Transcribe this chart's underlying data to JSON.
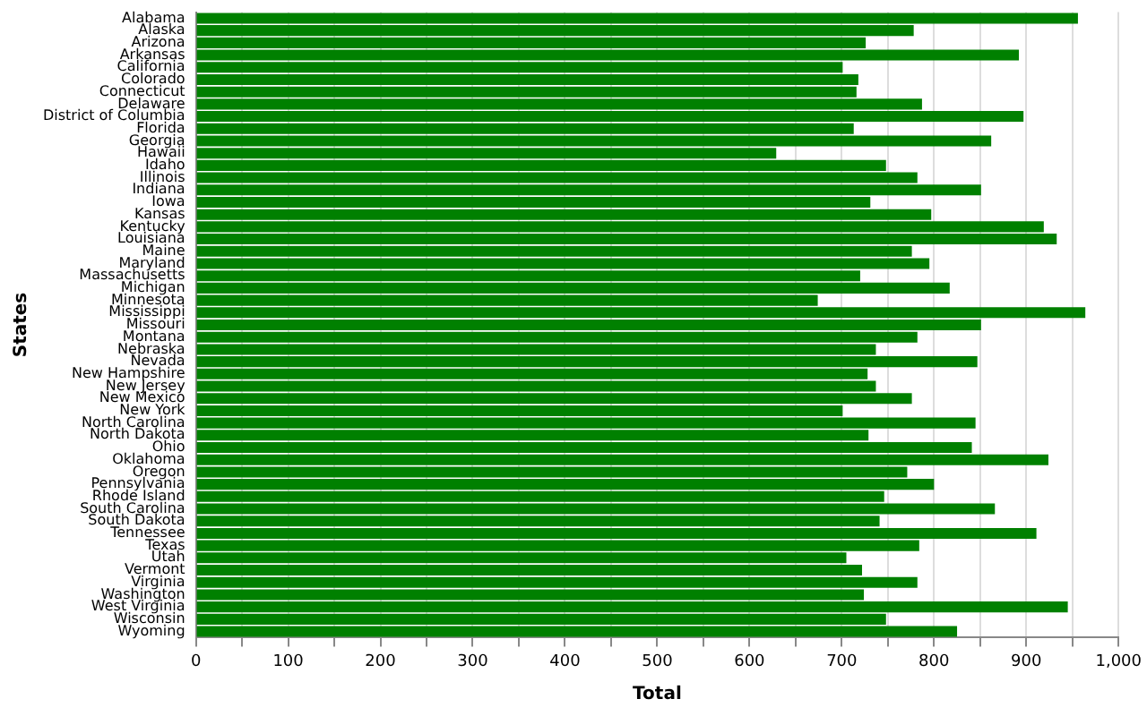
{
  "chart_data": {
    "type": "bar",
    "orientation": "horizontal",
    "xlabel": "Total",
    "ylabel": "States",
    "categories": [
      "Alabama",
      "Alaska",
      "Arizona",
      "Arkansas",
      "California",
      "Colorado",
      "Connecticut",
      "Delaware",
      "District of Columbia",
      "Florida",
      "Georgia",
      "Hawaii",
      "Idaho",
      "Illinois",
      "Indiana",
      "Iowa",
      "Kansas",
      "Kentucky",
      "Louisiana",
      "Maine",
      "Maryland",
      "Massachusetts",
      "Michigan",
      "Minnesota",
      "Mississippi",
      "Missouri",
      "Montana",
      "Nebraska",
      "Nevada",
      "New Hampshire",
      "New Jersey",
      "New Mexico",
      "New York",
      "North Carolina",
      "North Dakota",
      "Ohio",
      "Oklahoma",
      "Oregon",
      "Pennsylvania",
      "Rhode Island",
      "South Carolina",
      "South Dakota",
      "Tennessee",
      "Texas",
      "Utah",
      "Vermont",
      "Virginia",
      "Washington",
      "West Virginia",
      "Wisconsin",
      "Wyoming"
    ],
    "values": [
      956,
      778,
      726,
      892,
      701,
      718,
      716,
      787,
      897,
      713,
      862,
      629,
      748,
      782,
      851,
      731,
      797,
      919,
      933,
      776,
      795,
      720,
      817,
      674,
      964,
      851,
      782,
      737,
      847,
      728,
      737,
      776,
      701,
      845,
      729,
      841,
      924,
      771,
      800,
      746,
      866,
      741,
      911,
      784,
      705,
      722,
      782,
      724,
      945,
      748,
      825
    ],
    "color": "#008000",
    "xlim": [
      0,
      1000
    ],
    "xticks": [
      0,
      {
        "value": 50,
        "label": null
      },
      100,
      {
        "value": 150,
        "label": null
      },
      200,
      {
        "value": 250,
        "label": null
      },
      300,
      {
        "value": 350,
        "label": null
      },
      400,
      {
        "value": 450,
        "label": null
      },
      500,
      {
        "value": 550,
        "label": null
      },
      600,
      {
        "value": 650,
        "label": null
      },
      700,
      {
        "value": 750,
        "label": null
      },
      800,
      {
        "value": 850,
        "label": null
      },
      900,
      {
        "value": 950,
        "label": null
      },
      {
        "value": 1000,
        "label": "1,000"
      }
    ],
    "grid": "x"
  }
}
